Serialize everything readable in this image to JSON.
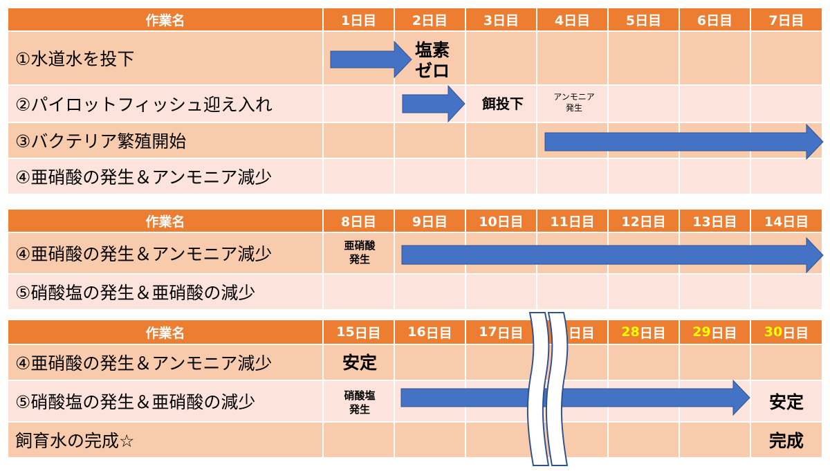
{
  "colors": {
    "header_bg": "#ed7d31",
    "row_dark": "#f8cbad",
    "row_light": "#fce4dc",
    "arrow": "#4472c4",
    "highlight_text": "#ffff00"
  },
  "section1": {
    "header": {
      "task_label": "作業名",
      "days": [
        "1日目",
        "2日目",
        "3日目",
        "4日目",
        "5日目",
        "6日目",
        "7日目"
      ]
    },
    "rows": [
      "①水道水を投下",
      "②パイロットフィッシュ迎え入れ",
      "③バクテリア繁殖開始",
      "④亜硝酸の発生＆アンモニア減少"
    ],
    "notes": {
      "chlorine_zero": "塩素\nゼロ",
      "feed_drop": "餌投下",
      "ammonia_occurs": "アンモニア\n発生"
    }
  },
  "section2": {
    "header": {
      "task_label": "作業名",
      "days": [
        "8日目",
        "9日目",
        "10日目",
        "11日目",
        "12日目",
        "13日目",
        "14日目"
      ]
    },
    "rows": [
      "④亜硝酸の発生＆アンモニア減少",
      "⑤硝酸塩の発生＆亜硝酸の減少"
    ],
    "notes": {
      "nitrite_occurs": "亜硝酸\n発生"
    }
  },
  "section3": {
    "header": {
      "task_label": "作業名",
      "days": [
        {
          "num": "15",
          "suffix": "日目",
          "highlight": false
        },
        {
          "num": "16",
          "suffix": "日目",
          "highlight": false
        },
        {
          "num": "17",
          "suffix": "日目",
          "highlight": false
        },
        {
          "num": "18",
          "suffix": "日目",
          "highlight": false
        },
        {
          "num": "28",
          "suffix": "日目",
          "highlight": true
        },
        {
          "num": "29",
          "suffix": "日目",
          "highlight": true
        },
        {
          "num": "30",
          "suffix": "日目",
          "highlight": true
        }
      ]
    },
    "rows": [
      "④亜硝酸の発生＆アンモニア減少",
      "⑤硝酸塩の発生＆亜硝酸の減少",
      "飼育水の完成☆"
    ],
    "notes": {
      "stable_1": "安定",
      "nitrate_occurs": "硝酸塩\n発生",
      "stable_2": "安定",
      "complete": "完成"
    }
  }
}
